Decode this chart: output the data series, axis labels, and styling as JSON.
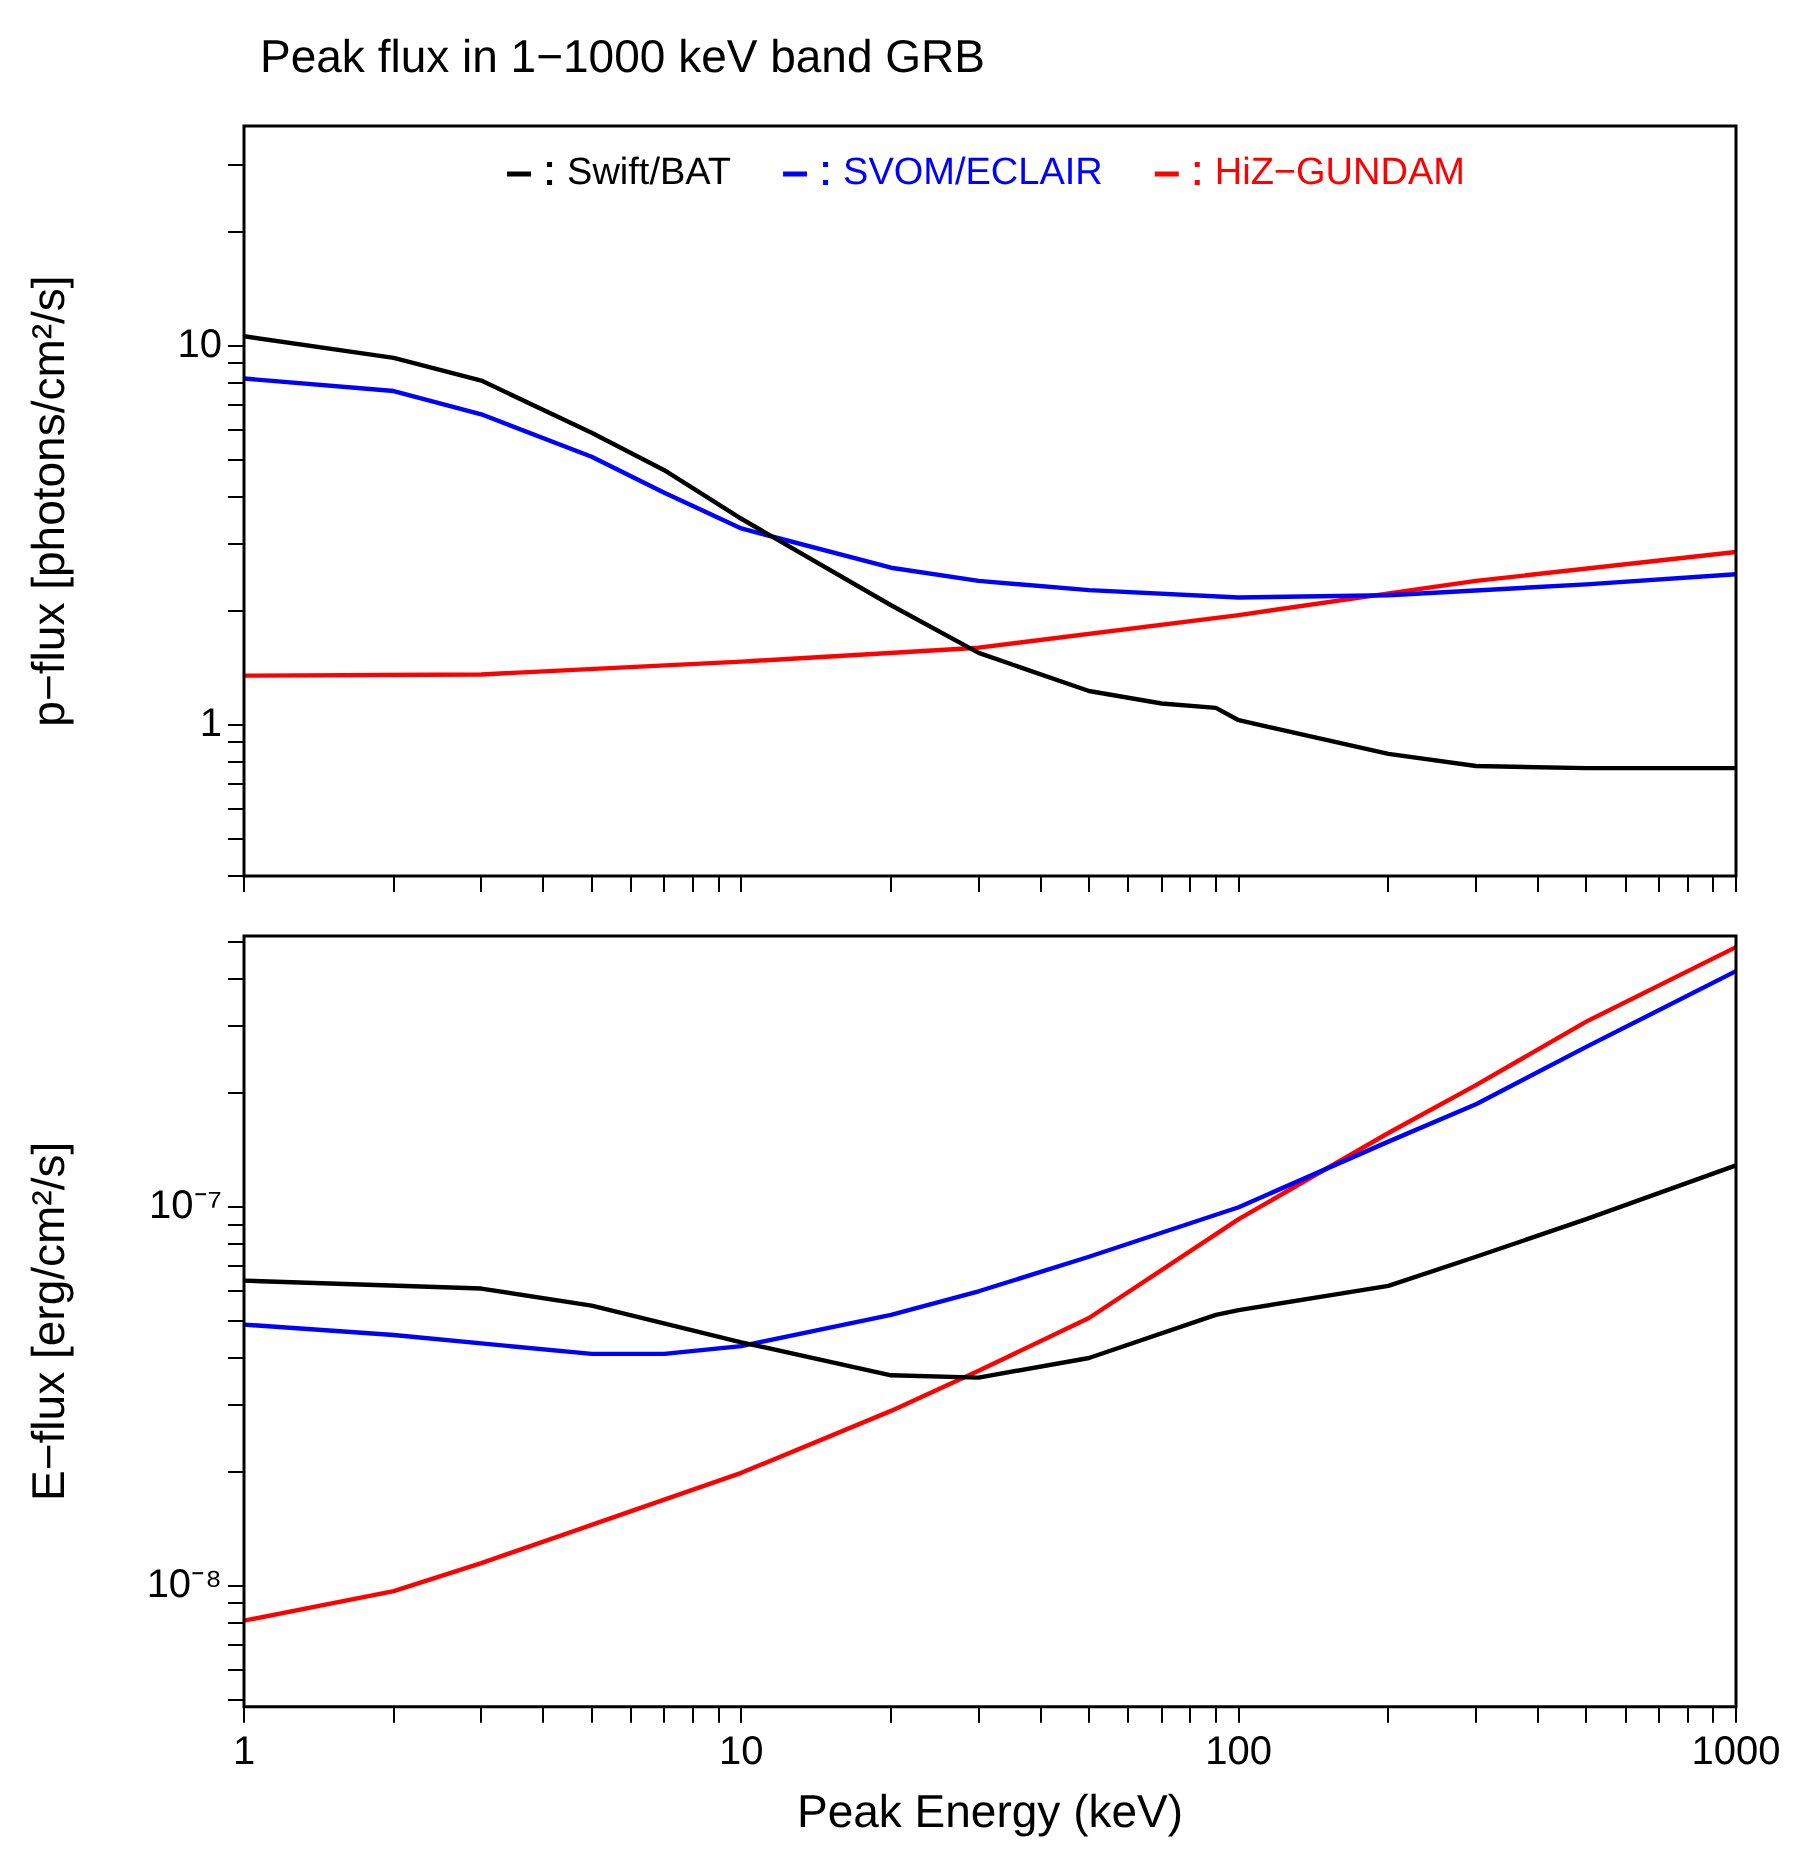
{
  "chart_data": [
    {
      "type": "line",
      "title": "Peak flux in 1−1000 keV band GRB",
      "ylabel": "p−flux [photons/cm²/s]",
      "log": "xy",
      "grid": false,
      "marker": "none",
      "line_style": "solid",
      "legend": "top",
      "tick_labels": "y",
      "xlim": [
        1,
        1000
      ],
      "ylim": [
        0.4,
        38
      ],
      "xticks": [
        1,
        {
          "value": 2,
          "label": null
        },
        {
          "value": 3,
          "label": null
        },
        {
          "value": 4,
          "label": null
        },
        {
          "value": 5,
          "label": null
        },
        {
          "value": 6,
          "label": null
        },
        {
          "value": 7,
          "label": null
        },
        {
          "value": 8,
          "label": null
        },
        {
          "value": 9,
          "label": null
        },
        10,
        {
          "value": 20,
          "label": null
        },
        {
          "value": 30,
          "label": null
        },
        {
          "value": 40,
          "label": null
        },
        {
          "value": 50,
          "label": null
        },
        {
          "value": 60,
          "label": null
        },
        {
          "value": 70,
          "label": null
        },
        {
          "value": 80,
          "label": null
        },
        {
          "value": 90,
          "label": null
        },
        100,
        {
          "value": 200,
          "label": null
        },
        {
          "value": 300,
          "label": null
        },
        {
          "value": 400,
          "label": null
        },
        {
          "value": 500,
          "label": null
        },
        {
          "value": 600,
          "label": null
        },
        {
          "value": 700,
          "label": null
        },
        {
          "value": 800,
          "label": null
        },
        {
          "value": 900,
          "label": null
        },
        1000
      ],
      "yticks": [
        {
          "value": 0.4,
          "label": null
        },
        {
          "value": 0.5,
          "label": null
        },
        {
          "value": 0.6,
          "label": null
        },
        {
          "value": 0.7,
          "label": null
        },
        {
          "value": 0.8,
          "label": null
        },
        {
          "value": 0.9,
          "label": null
        },
        1,
        {
          "value": 2,
          "label": null
        },
        {
          "value": 3,
          "label": null
        },
        {
          "value": 4,
          "label": null
        },
        {
          "value": 5,
          "label": null
        },
        {
          "value": 6,
          "label": null
        },
        {
          "value": 7,
          "label": null
        },
        {
          "value": 8,
          "label": null
        },
        {
          "value": 9,
          "label": null
        },
        10,
        {
          "value": 20,
          "label": null
        },
        {
          "value": 30,
          "label": null
        }
      ],
      "series": [
        {
          "name": "Swift/BAT",
          "color": "#000000",
          "x": [
            1,
            2,
            3,
            5,
            7,
            10,
            20,
            30,
            50,
            70,
            90,
            100,
            200,
            300,
            500,
            1000
          ],
          "values": [
            10.6,
            9.3,
            8.1,
            5.9,
            4.7,
            3.5,
            2.07,
            1.55,
            1.23,
            1.14,
            1.11,
            1.03,
            0.84,
            0.78,
            0.77,
            0.77
          ]
        },
        {
          "name": "SVOM/ECLAIR",
          "color": "#0000ff",
          "x": [
            1,
            2,
            3,
            5,
            7,
            10,
            20,
            30,
            50,
            100,
            200,
            500,
            1000
          ],
          "values": [
            8.2,
            7.6,
            6.6,
            5.1,
            4.1,
            3.3,
            2.6,
            2.4,
            2.27,
            2.17,
            2.2,
            2.35,
            2.5
          ]
        },
        {
          "name": "HiZ−GUNDAM",
          "color": "#ff0000",
          "x": [
            1,
            3,
            10,
            30,
            100,
            300,
            1000
          ],
          "values": [
            1.35,
            1.36,
            1.47,
            1.6,
            1.95,
            2.4,
            2.86
          ]
        }
      ]
    },
    {
      "type": "line",
      "xlabel": "Peak Energy (keV)",
      "ylabel": "E−flux [erg/cm²/s]",
      "log": "xy",
      "grid": false,
      "marker": "none",
      "line_style": "solid",
      "xlim": [
        1,
        1000
      ],
      "ylim": [
        4.8e-09,
        5.2e-07
      ],
      "xticks": [
        1,
        {
          "value": 2,
          "label": null
        },
        {
          "value": 3,
          "label": null
        },
        {
          "value": 4,
          "label": null
        },
        {
          "value": 5,
          "label": null
        },
        {
          "value": 6,
          "label": null
        },
        {
          "value": 7,
          "label": null
        },
        {
          "value": 8,
          "label": null
        },
        {
          "value": 9,
          "label": null
        },
        10,
        {
          "value": 20,
          "label": null
        },
        {
          "value": 30,
          "label": null
        },
        {
          "value": 40,
          "label": null
        },
        {
          "value": 50,
          "label": null
        },
        {
          "value": 60,
          "label": null
        },
        {
          "value": 70,
          "label": null
        },
        {
          "value": 80,
          "label": null
        },
        {
          "value": 90,
          "label": null
        },
        100,
        {
          "value": 200,
          "label": null
        },
        {
          "value": 300,
          "label": null
        },
        {
          "value": 400,
          "label": null
        },
        {
          "value": 500,
          "label": null
        },
        {
          "value": 600,
          "label": null
        },
        {
          "value": 700,
          "label": null
        },
        {
          "value": 800,
          "label": null
        },
        {
          "value": 900,
          "label": null
        },
        1000
      ],
      "yticks": [
        {
          "value": 5e-09,
          "label": null
        },
        {
          "value": 6e-09,
          "label": null
        },
        {
          "value": 7e-09,
          "label": null
        },
        {
          "value": 8e-09,
          "label": null
        },
        {
          "value": 9e-09,
          "label": null
        },
        {
          "value": 1e-08,
          "label": "10⁻⁸"
        },
        {
          "value": 2e-08,
          "label": null
        },
        {
          "value": 3e-08,
          "label": null
        },
        {
          "value": 4e-08,
          "label": null
        },
        {
          "value": 5e-08,
          "label": null
        },
        {
          "value": 6e-08,
          "label": null
        },
        {
          "value": 7e-08,
          "label": null
        },
        {
          "value": 8e-08,
          "label": null
        },
        {
          "value": 9e-08,
          "label": null
        },
        {
          "value": 1e-07,
          "label": "10⁻⁷"
        },
        {
          "value": 2e-07,
          "label": null
        },
        {
          "value": 3e-07,
          "label": null
        },
        {
          "value": 4e-07,
          "label": null
        },
        {
          "value": 5e-07,
          "label": null
        }
      ],
      "series": [
        {
          "color": "#000000",
          "x": [
            1,
            3,
            5,
            10,
            20,
            30,
            50,
            90,
            100,
            200,
            300,
            500,
            1000
          ],
          "values": [
            6.4e-08,
            6.1e-08,
            5.5e-08,
            4.4e-08,
            3.6e-08,
            3.55e-08,
            4e-08,
            5.2e-08,
            5.35e-08,
            6.2e-08,
            7.4e-08,
            9.3e-08,
            1.29e-07
          ]
        },
        {
          "color": "#0000ff",
          "x": [
            1,
            2,
            5,
            7,
            10,
            20,
            30,
            50,
            100,
            200,
            300,
            500,
            1000
          ],
          "values": [
            4.9e-08,
            4.6e-08,
            4.1e-08,
            4.1e-08,
            4.3e-08,
            5.2e-08,
            6e-08,
            7.4e-08,
            1e-07,
            1.49e-07,
            1.87e-07,
            2.65e-07,
            4.2e-07
          ]
        },
        {
          "color": "#ff0000",
          "x": [
            1,
            2,
            3,
            5,
            10,
            20,
            30,
            50,
            100,
            200,
            300,
            500,
            1000
          ],
          "values": [
            8.1e-09,
            9.7e-09,
            1.15e-08,
            1.45e-08,
            1.99e-08,
            2.9e-08,
            3.7e-08,
            5.1e-08,
            9.3e-08,
            1.57e-07,
            2.1e-07,
            3.09e-07,
            4.86e-07
          ]
        }
      ]
    }
  ]
}
